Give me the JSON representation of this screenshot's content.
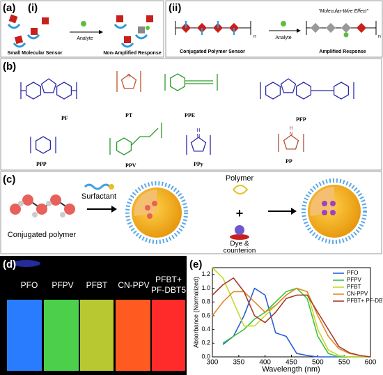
{
  "panels": {
    "a": {
      "label": "(a)",
      "sub": "(i)",
      "analyte": "Analyte",
      "left_caption": "Small Molecular Sensor",
      "right_caption": "Non-Amplified Response"
    },
    "a2": {
      "label": "(ii)",
      "analyte": "Analyte",
      "effect": "\"Molecular-Wire Effect\"",
      "repeat": "n",
      "left_caption": "Conjugated Polymer Sensor",
      "right_caption": "Amplified Response"
    },
    "b": {
      "label": "(b)",
      "structures": [
        {
          "name": "PF"
        },
        {
          "name": "PT",
          "atom": "S"
        },
        {
          "name": "PPE"
        },
        {
          "name": "PFP"
        },
        {
          "name": "PPP"
        },
        {
          "name": "PPV"
        },
        {
          "name": "PPy",
          "atom": "N",
          "h": "H"
        },
        {
          "name": "PP",
          "atom": "N",
          "h": "H"
        }
      ]
    },
    "c": {
      "label": "(c)",
      "surfactant": "Surfactant",
      "polymer_caption": "Conjugated polymer",
      "polymer": "Polymer",
      "plus": "+",
      "dye": "Dye &",
      "counterion": "counterion"
    },
    "d": {
      "label": "(d)",
      "vials": [
        [
          "PFO"
        ],
        [
          "PFPV"
        ],
        [
          "PFBT"
        ],
        [
          "CN-PPV"
        ],
        [
          "PFBT+",
          "PF-DBT5"
        ]
      ]
    }
  },
  "chart_data": {
    "type": "line",
    "panel_label": "(e)",
    "xlabel": "Wavelength (nm)",
    "ylabel": "Absorbance (Normalized)",
    "x": [
      300,
      320,
      340,
      360,
      380,
      400,
      420,
      440,
      460,
      480,
      500,
      520,
      540,
      560,
      580,
      600
    ],
    "xlim": [
      300,
      600
    ],
    "xticks": [
      300,
      350,
      400,
      450,
      500,
      550,
      600
    ],
    "ylim": [
      0,
      1.3
    ],
    "yticks": [
      {
        "value": 0,
        "label": "0.0"
      },
      {
        "value": 0.2,
        "label": "0.2"
      },
      {
        "value": 0.4,
        "label": "0.4"
      },
      {
        "value": 0.6,
        "label": "0.6"
      },
      {
        "value": 0.8,
        "label": "0.8"
      },
      {
        "value": 1.0,
        "label": "1.0"
      },
      {
        "value": 1.2,
        "label": "1.2"
      }
    ],
    "legend": "upper right",
    "series": [
      {
        "name": "PFO",
        "color": "#2b5fd9",
        "values": [
          null,
          0.18,
          0.3,
          0.6,
          1.0,
          0.9,
          0.35,
          0.3,
          0.05,
          0.02,
          0,
          0,
          0,
          0,
          0,
          0
        ]
      },
      {
        "name": "PFPV",
        "color": "#3cc43c",
        "values": [
          null,
          0.2,
          0.3,
          0.4,
          0.55,
          0.65,
          0.8,
          0.95,
          1.0,
          0.85,
          0.3,
          0.05,
          0,
          0,
          0,
          0
        ]
      },
      {
        "name": "PFBT",
        "color": "#c8d92a",
        "values": [
          1.3,
          1.15,
          0.8,
          0.45,
          0.45,
          0.6,
          0.75,
          0.9,
          1.0,
          0.95,
          0.4,
          0.1,
          0.02,
          0,
          0,
          0
        ]
      },
      {
        "name": "CN-PPV",
        "color": "#e08a2a",
        "values": [
          0.6,
          0.8,
          0.95,
          0.95,
          0.8,
          0.65,
          0.75,
          0.9,
          1.0,
          0.95,
          0.6,
          0.3,
          0.12,
          0.05,
          0.02,
          0
        ]
      },
      {
        "name": "PFBT+ PF-DBT5",
        "color": "#a83a2a",
        "values": [
          0.9,
          1.05,
          1.15,
          0.95,
          0.6,
          0.5,
          0.65,
          0.85,
          0.9,
          0.9,
          0.65,
          0.4,
          0.15,
          0.06,
          0.02,
          0
        ]
      }
    ]
  }
}
